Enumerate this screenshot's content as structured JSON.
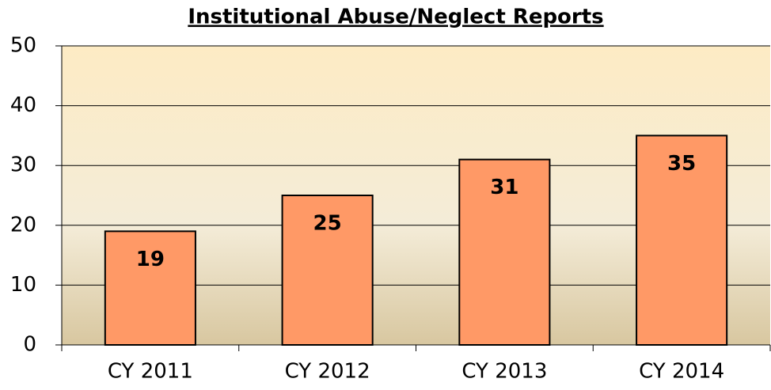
{
  "chart_data": {
    "type": "bar",
    "title": "Institutional Abuse/Neglect Reports",
    "categories": [
      "CY 2011",
      "CY 2012",
      "CY 2013",
      "CY 2014"
    ],
    "values": [
      19,
      25,
      31,
      35
    ],
    "color": "#ff9966",
    "ylim": [
      0,
      50
    ],
    "yticks": [
      0,
      10,
      20,
      30,
      40,
      50
    ],
    "grid": true
  }
}
